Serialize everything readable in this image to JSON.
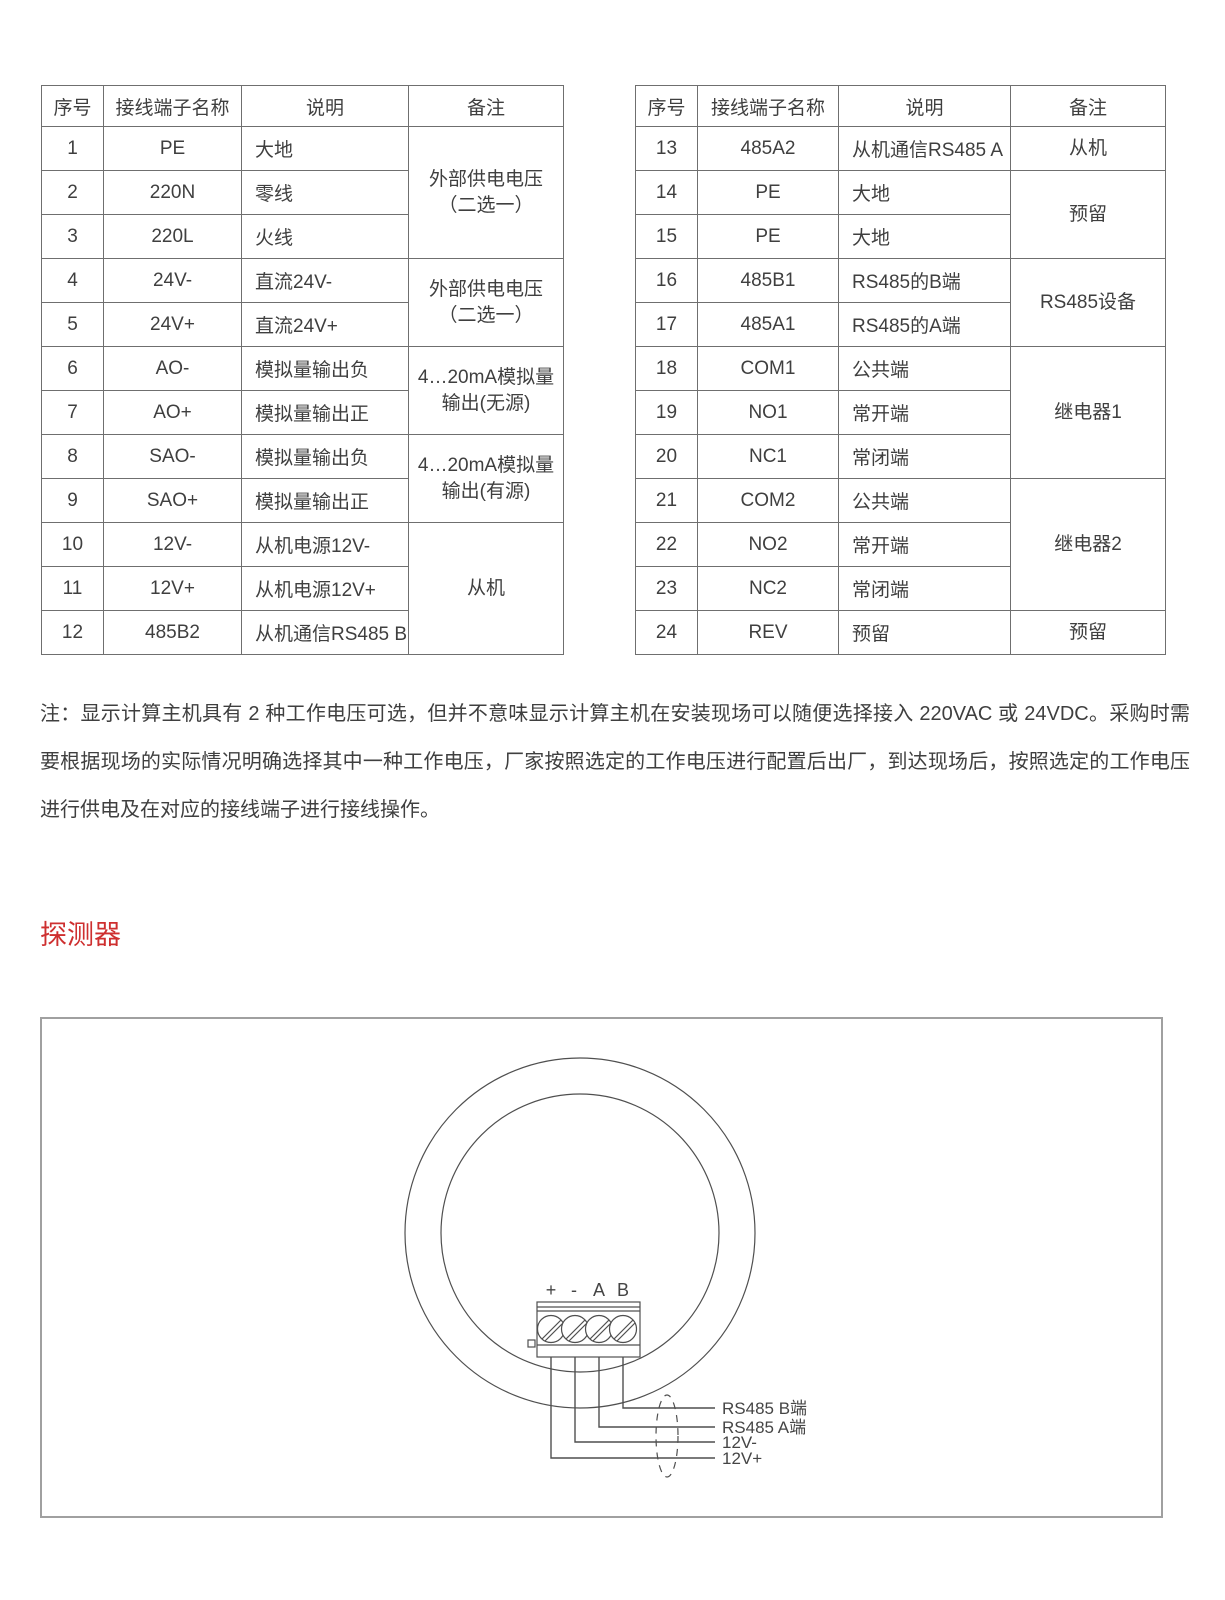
{
  "theme": {
    "text_color": "#3f3f3f",
    "table_border": "#6f6f6f",
    "accent_red": "#ce2f2f",
    "line_color": "#4f4f4f",
    "box_border": "#a0a0a0"
  },
  "table_left": {
    "headers": [
      "序号",
      "接线端子名称",
      "说明",
      "备注"
    ],
    "rows": [
      {
        "no": "1",
        "name": "PE",
        "desc": "大地"
      },
      {
        "no": "2",
        "name": "220N",
        "desc": "零线"
      },
      {
        "no": "3",
        "name": "220L",
        "desc": "火线"
      },
      {
        "no": "4",
        "name": "24V-",
        "desc": "直流24V-"
      },
      {
        "no": "5",
        "name": "24V+",
        "desc": "直流24V+"
      },
      {
        "no": "6",
        "name": "AO-",
        "desc": "模拟量输出负"
      },
      {
        "no": "7",
        "name": "AO+",
        "desc": "模拟量输出正"
      },
      {
        "no": "8",
        "name": "SAO-",
        "desc": "模拟量输出负"
      },
      {
        "no": "9",
        "name": "SAO+",
        "desc": "模拟量输出正"
      },
      {
        "no": "10",
        "name": "12V-",
        "desc": "从机电源12V-"
      },
      {
        "no": "11",
        "name": "12V+",
        "desc": "从机电源12V+"
      },
      {
        "no": "12",
        "name": "485B2",
        "desc": "从机通信RS485 B"
      }
    ],
    "remarks": [
      {
        "span": 3,
        "lines": [
          "外部供电电压",
          "（二选一）"
        ]
      },
      {
        "span": 2,
        "lines": [
          "外部供电电压",
          "（二选一）"
        ]
      },
      {
        "span": 2,
        "lines": [
          "4…20mA模拟量",
          "输出(无源)"
        ]
      },
      {
        "span": 2,
        "lines": [
          "4…20mA模拟量",
          "输出(有源)"
        ]
      },
      {
        "span": 3,
        "lines": [
          "从机"
        ]
      }
    ]
  },
  "table_right": {
    "headers": [
      "序号",
      "接线端子名称",
      "说明",
      "备注"
    ],
    "rows": [
      {
        "no": "13",
        "name": "485A2",
        "desc": "从机通信RS485 A"
      },
      {
        "no": "14",
        "name": "PE",
        "desc": "大地"
      },
      {
        "no": "15",
        "name": "PE",
        "desc": "大地"
      },
      {
        "no": "16",
        "name": "485B1",
        "desc": "RS485的B端"
      },
      {
        "no": "17",
        "name": "485A1",
        "desc": "RS485的A端"
      },
      {
        "no": "18",
        "name": "COM1",
        "desc": "公共端"
      },
      {
        "no": "19",
        "name": "NO1",
        "desc": "常开端"
      },
      {
        "no": "20",
        "name": "NC1",
        "desc": "常闭端"
      },
      {
        "no": "21",
        "name": "COM2",
        "desc": "公共端"
      },
      {
        "no": "22",
        "name": "NO2",
        "desc": "常开端"
      },
      {
        "no": "23",
        "name": "NC2",
        "desc": "常闭端"
      },
      {
        "no": "24",
        "name": "REV",
        "desc": "预留"
      }
    ],
    "remarks": [
      {
        "span": 1,
        "lines": [
          "从机"
        ]
      },
      {
        "span": 2,
        "lines": [
          "预留"
        ]
      },
      {
        "span": 2,
        "lines": [
          "RS485设备"
        ]
      },
      {
        "span": 3,
        "lines": [
          "继电器1"
        ]
      },
      {
        "span": 3,
        "lines": [
          "继电器2"
        ]
      },
      {
        "span": 1,
        "lines": [
          "预留"
        ]
      }
    ]
  },
  "note": {
    "text": "注：显示计算主机具有 2 种工作电压可选，但并不意味显示计算主机在安装现场可以随便选择接入 220VAC 或 24VDC。采购时需要根据现场的实际情况明确选择其中一种工作电压，厂家按照选定的工作电压进行配置后出厂，到达现场后，按照选定的工作电压进行供电及在对应的接线端子进行接线操作。"
  },
  "heading": {
    "text": "探测器"
  },
  "diagram": {
    "terminals": [
      "+",
      "-",
      "A",
      "B"
    ],
    "wire_labels": [
      "RS485 B端",
      "RS485 A端",
      "12V-",
      "12V+"
    ]
  }
}
